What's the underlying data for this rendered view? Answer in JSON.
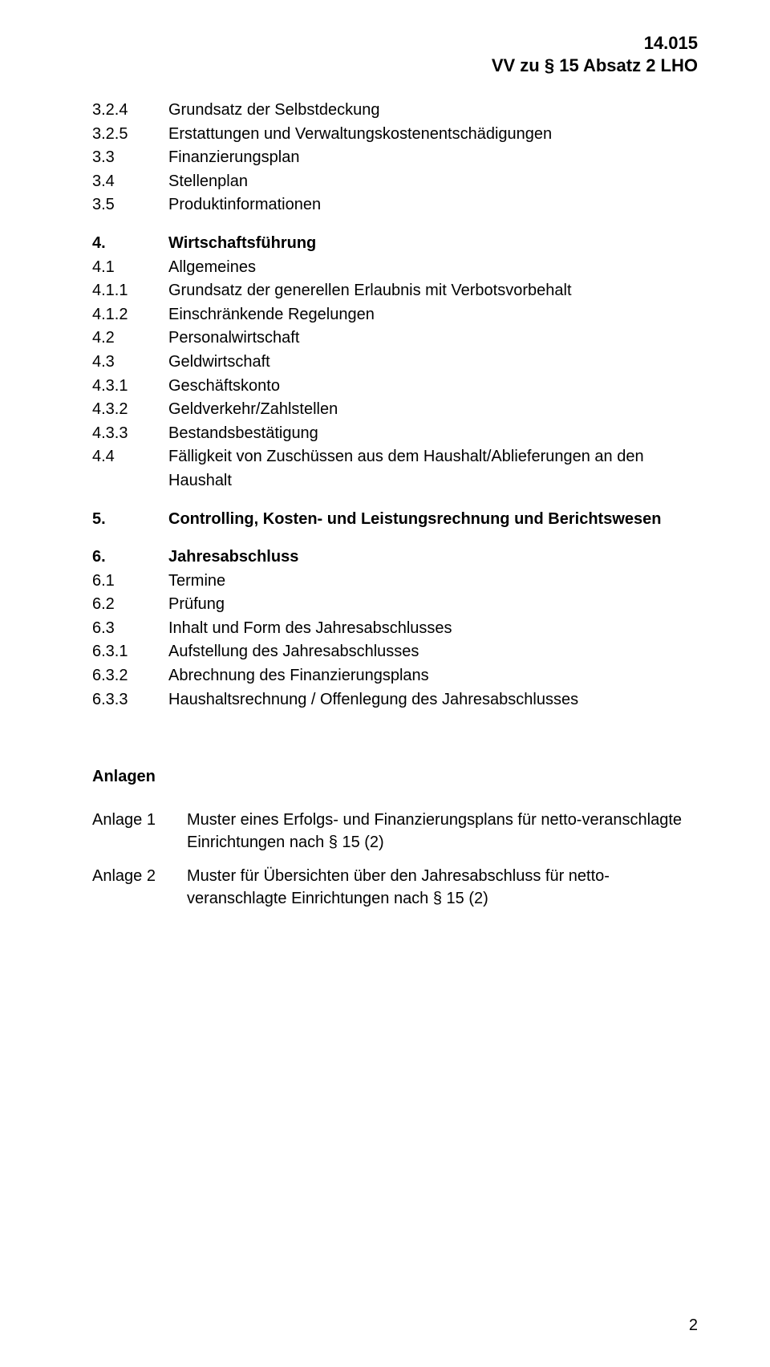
{
  "header": {
    "line1": "14.015",
    "line2": "VV zu § 15 Absatz 2 LHO"
  },
  "toc": [
    {
      "num": "3.2.4",
      "title": "Grundsatz der Selbstdeckung",
      "bold": false
    },
    {
      "num": "3.2.5",
      "title": "Erstattungen und Verwaltungskostenentschädigungen",
      "bold": false
    },
    {
      "num": "3.3",
      "title": "Finanzierungsplan",
      "bold": false
    },
    {
      "num": "3.4",
      "title": "Stellenplan",
      "bold": false
    },
    {
      "num": "3.5",
      "title": "Produktinformationen",
      "bold": false
    },
    {
      "gap": true
    },
    {
      "num": "4.",
      "title": "Wirtschaftsführung",
      "bold": true
    },
    {
      "num": "4.1",
      "title": "Allgemeines",
      "bold": false
    },
    {
      "num": "4.1.1",
      "title": "Grundsatz der generellen Erlaubnis mit Verbotsvorbehalt",
      "bold": false
    },
    {
      "num": "4.1.2",
      "title": "Einschränkende Regelungen",
      "bold": false
    },
    {
      "num": "4.2",
      "title": "Personalwirtschaft",
      "bold": false
    },
    {
      "num": "4.3",
      "title": "Geldwirtschaft",
      "bold": false
    },
    {
      "num": "4.3.1",
      "title": "Geschäftskonto",
      "bold": false
    },
    {
      "num": "4.3.2",
      "title": "Geldverkehr/Zahlstellen",
      "bold": false
    },
    {
      "num": "4.3.3",
      "title": "Bestandsbestätigung",
      "bold": false
    },
    {
      "num": "4.4",
      "title": "Fälligkeit von Zuschüssen aus dem Haushalt/Ablieferungen an den Haushalt",
      "bold": false
    },
    {
      "gap": true
    },
    {
      "num": "5.",
      "title": "Controlling, Kosten- und Leistungsrechnung und Berichtswesen",
      "bold": true
    },
    {
      "gap": true
    },
    {
      "num": "6.",
      "title": "Jahresabschluss",
      "bold": true
    },
    {
      "num": "6.1",
      "title": "Termine",
      "bold": false
    },
    {
      "num": "6.2",
      "title": "Prüfung",
      "bold": false
    },
    {
      "num": "6.3",
      "title": "Inhalt und Form des Jahresabschlusses",
      "bold": false
    },
    {
      "num": "6.3.1",
      "title": "Aufstellung des Jahresabschlusses",
      "bold": false
    },
    {
      "num": "6.3.2",
      "title": "Abrechnung des Finanzierungsplans",
      "bold": false
    },
    {
      "num": "6.3.3",
      "title": "Haushaltsrechnung / Offenlegung des Jahresabschlusses",
      "bold": false
    }
  ],
  "anlagen": {
    "heading": "Anlagen",
    "items": [
      {
        "label": "Anlage 1",
        "text": "Muster eines Erfolgs- und Finanzierungsplans für netto-veranschlagte Einrichtungen nach § 15 (2)"
      },
      {
        "label": "Anlage 2",
        "text": "Muster für Übersichten über den Jahresabschluss für netto-veranschlagte Einrichtungen nach § 15 (2)"
      }
    ]
  },
  "page_number": "2"
}
